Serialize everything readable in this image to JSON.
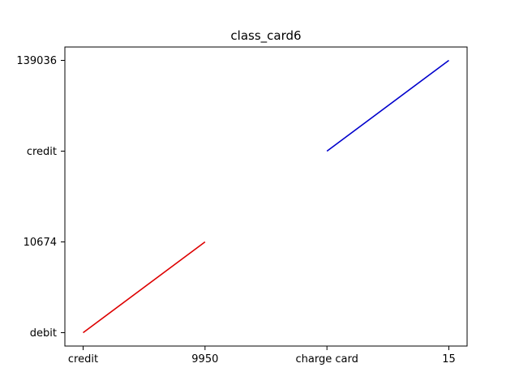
{
  "chart_data": {
    "type": "line",
    "title": "class_card6",
    "x_categories": [
      "credit",
      "9950",
      "charge card",
      "15"
    ],
    "y_categories": [
      "debit",
      "10674",
      "credit",
      "139036"
    ],
    "series": [
      {
        "color": "#dd0000",
        "x": [
          "credit",
          "9950"
        ],
        "y": [
          "debit",
          "10674"
        ]
      },
      {
        "color": "#0000cc",
        "x": [
          "charge card",
          "15"
        ],
        "y": [
          "credit",
          "139036"
        ]
      }
    ],
    "grid": false,
    "legend": "none"
  }
}
